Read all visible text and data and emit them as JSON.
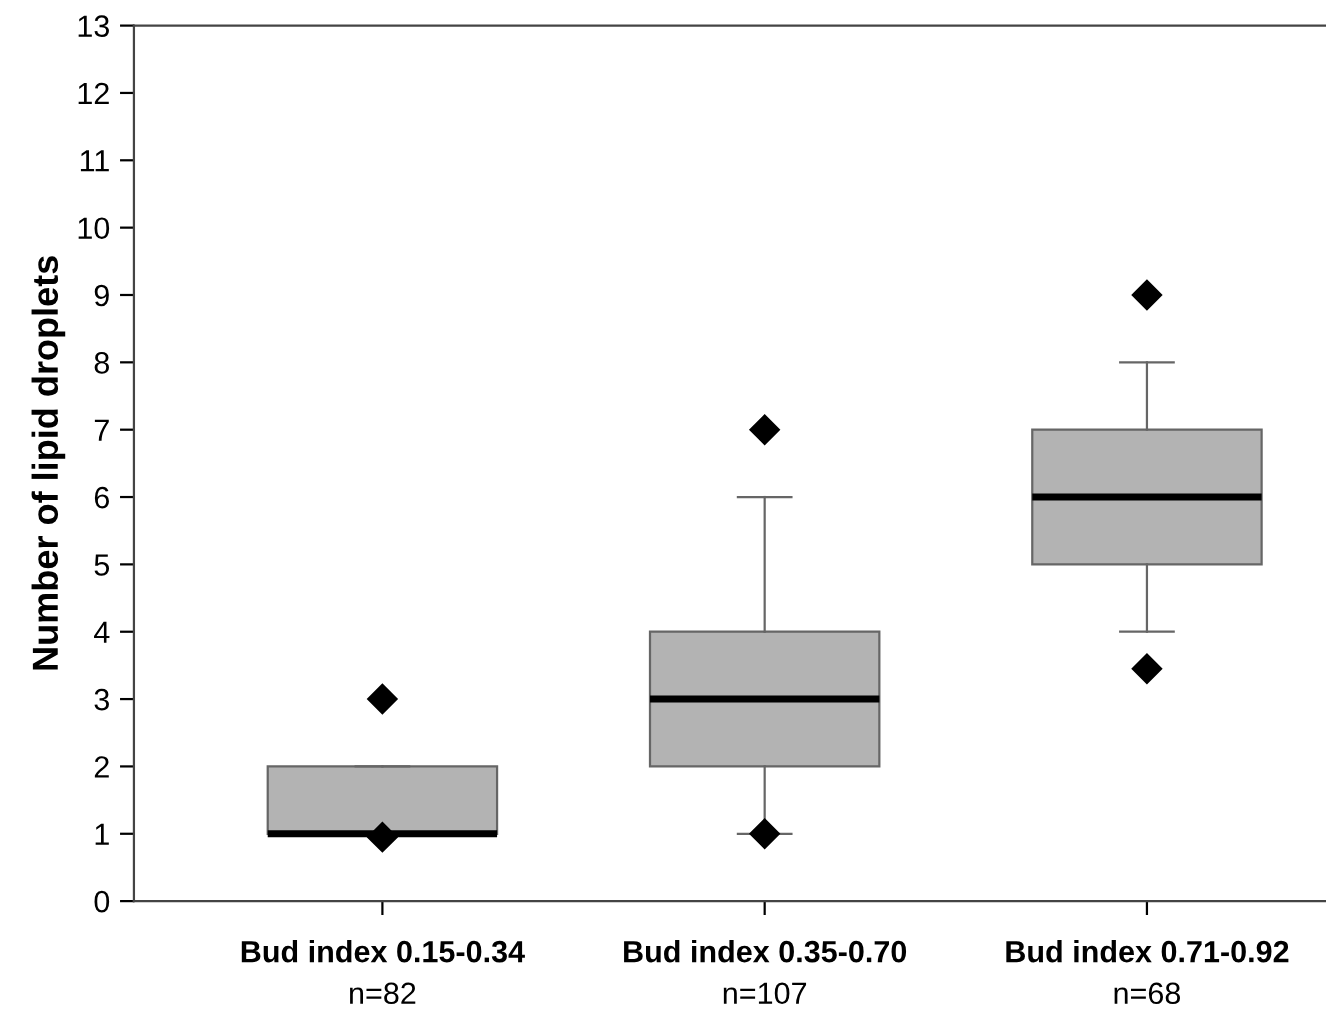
{
  "chart_data": {
    "type": "box",
    "ylabel": "Number of lipid droplets",
    "categories": [
      "Bud index 0.15-0.34",
      "Bud index 0.35-0.70",
      "Bud index 0.71-0.92"
    ],
    "boxes": [
      {
        "low": 1,
        "q1": 1,
        "median": 1,
        "q3": 2,
        "high": 2,
        "outliers": [
          3,
          0.95
        ]
      },
      {
        "low": 1,
        "q1": 2,
        "median": 3,
        "q3": 4,
        "high": 6,
        "outliers": [
          7,
          1
        ]
      },
      {
        "low": 4,
        "q1": 5,
        "median": 6,
        "q3": 7,
        "high": 8,
        "outliers": [
          9,
          3.45
        ]
      }
    ],
    "color": "#b3b3b3",
    "marker": "diamond",
    "annotations": [
      "n=82",
      "n=107",
      "n=68"
    ],
    "ylim": [
      0,
      13
    ],
    "yticks": [
      0,
      1,
      2,
      3,
      4,
      5,
      6,
      7,
      8,
      9,
      10,
      11,
      12,
      13
    ],
    "grid": false
  }
}
